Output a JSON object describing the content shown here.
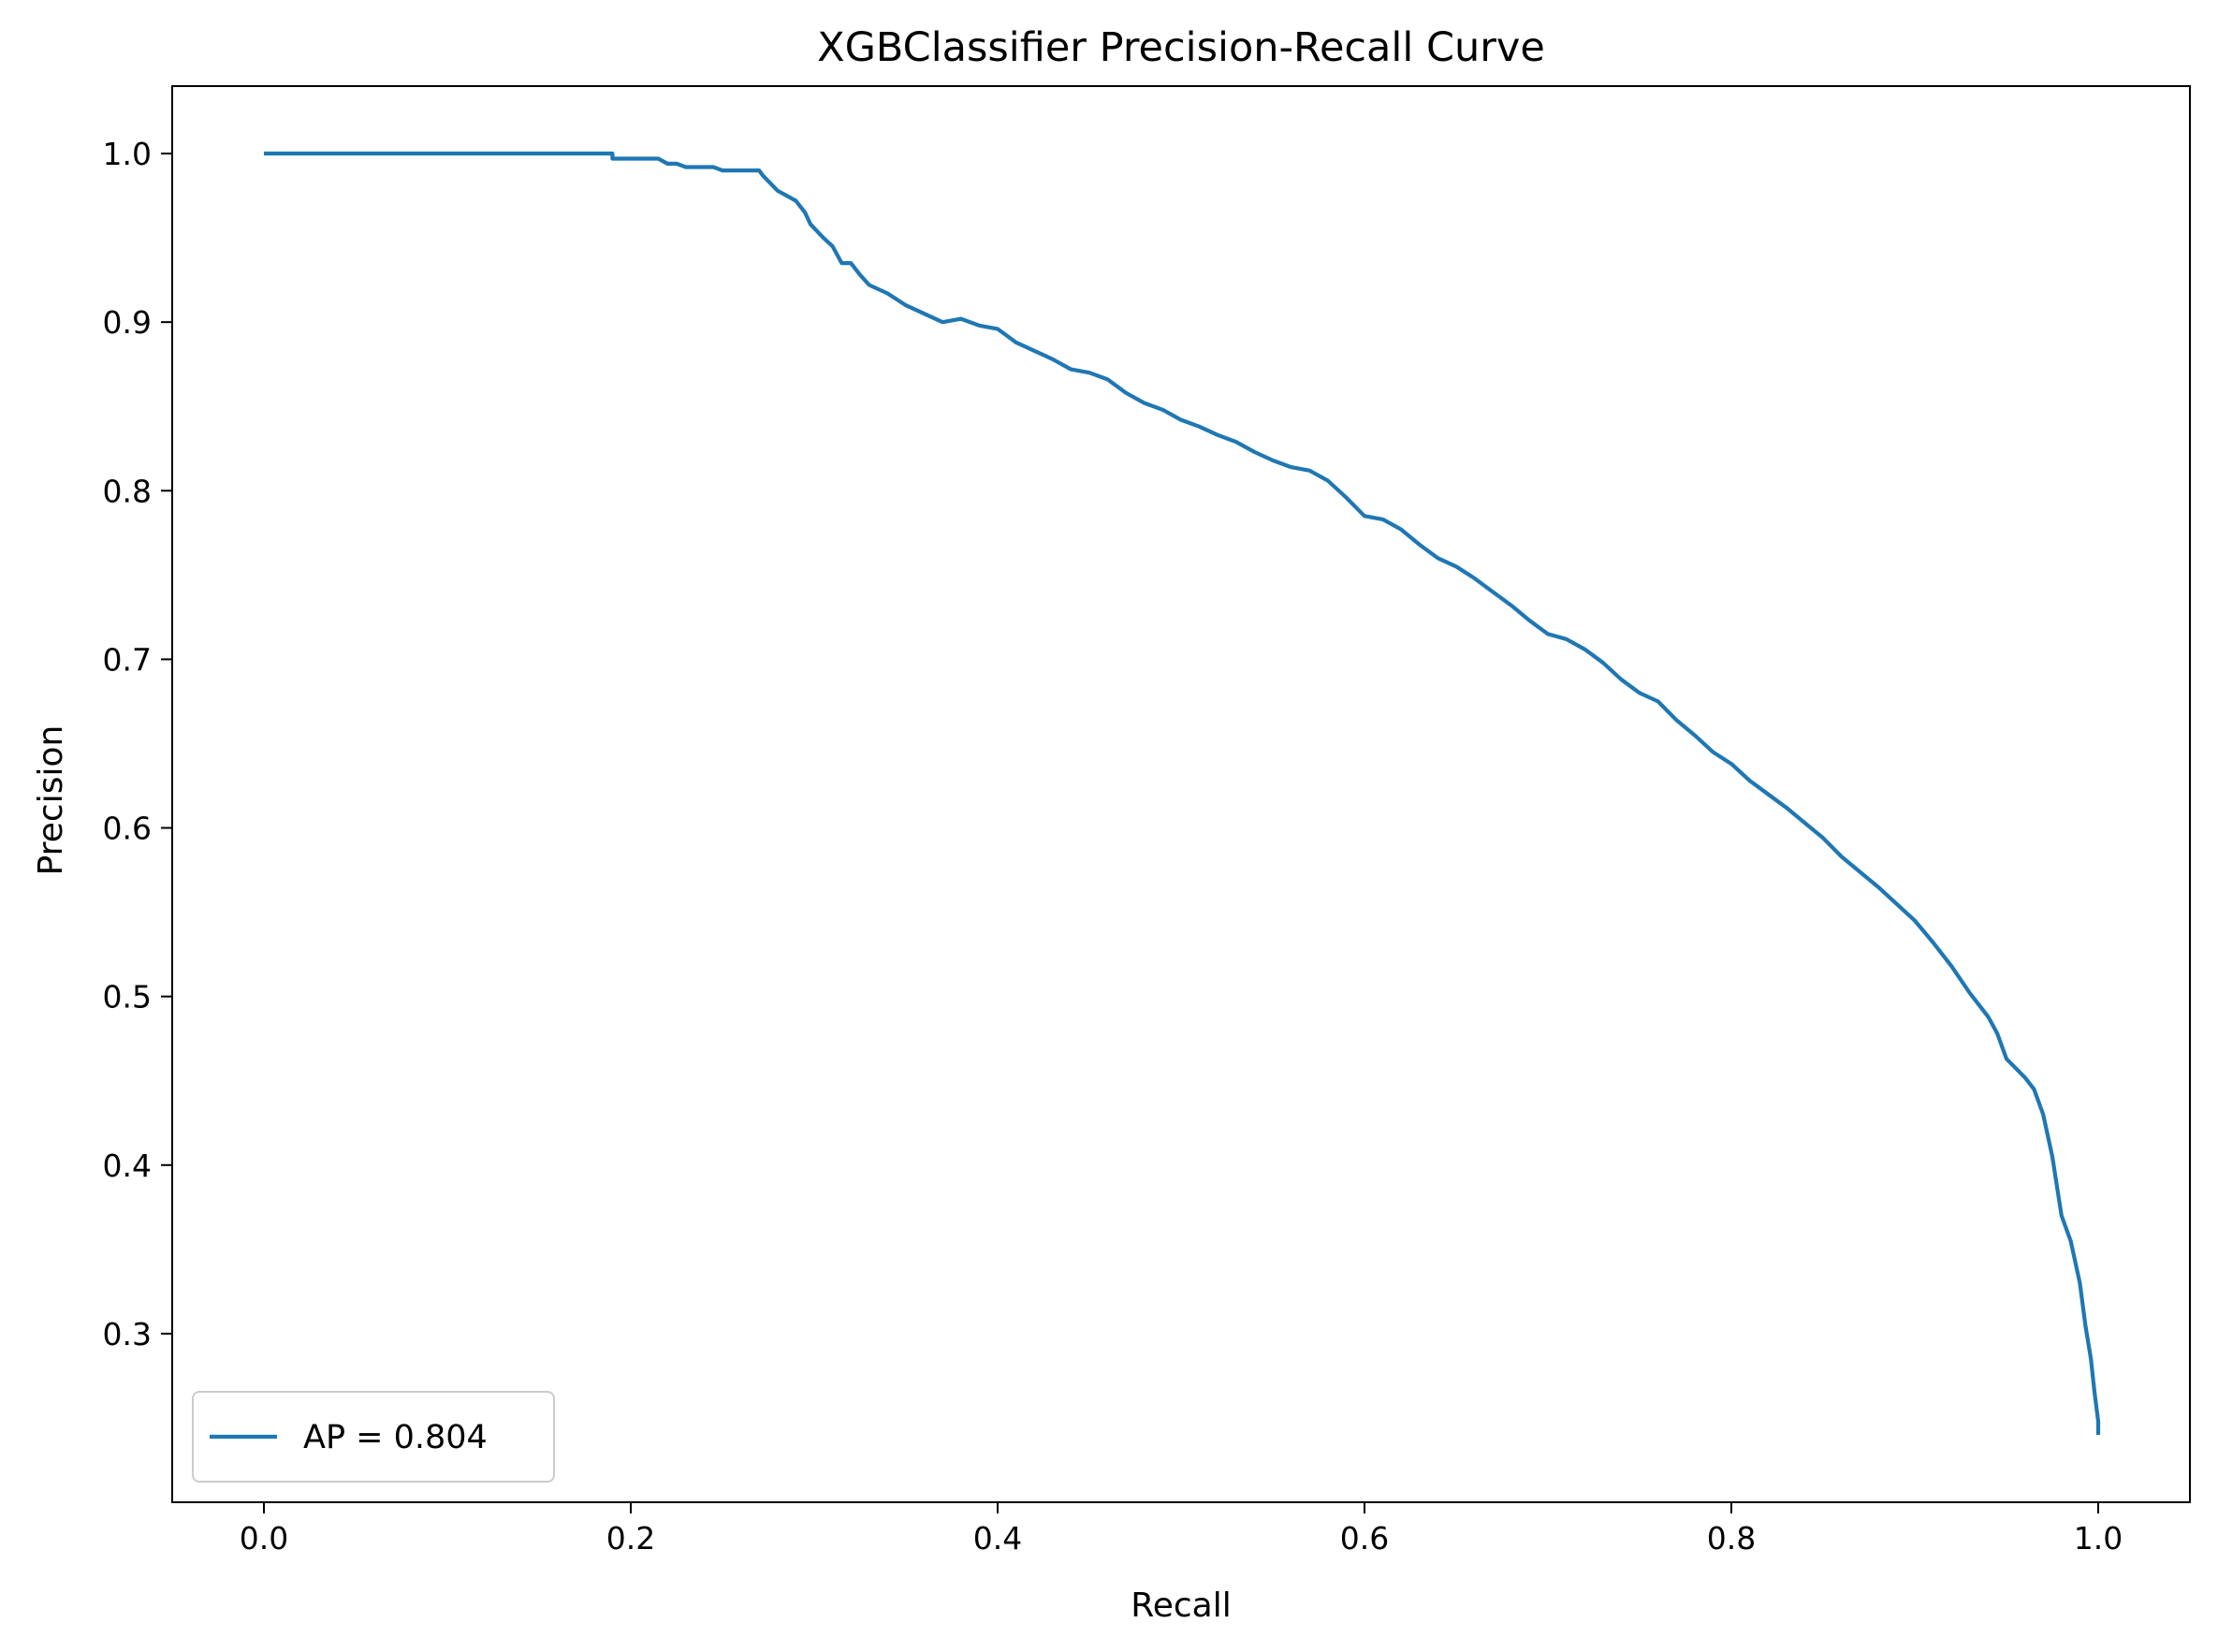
{
  "chart_data": {
    "type": "line",
    "title": "XGBClassifier Precision-Recall Curve",
    "xlabel": "Recall",
    "ylabel": "Precision",
    "xlim": [
      -0.05,
      1.05
    ],
    "ylim": [
      0.2,
      1.04
    ],
    "xticks": [
      0.0,
      0.2,
      0.4,
      0.6,
      0.8,
      1.0
    ],
    "xtick_labels": [
      "0.0",
      "0.2",
      "0.4",
      "0.6",
      "0.8",
      "1.0"
    ],
    "yticks": [
      0.3,
      0.4,
      0.5,
      0.6,
      0.7,
      0.8,
      0.9,
      1.0
    ],
    "ytick_labels": [
      "0.3",
      "0.4",
      "0.5",
      "0.6",
      "0.7",
      "0.8",
      "0.9",
      "1.0"
    ],
    "grid": false,
    "legend_position": "lower-left",
    "series": [
      {
        "name": "AP = 0.804",
        "color": "#1f77b4",
        "x": [
          0.0,
          0.19,
          0.19,
          0.215,
          0.22,
          0.225,
          0.23,
          0.245,
          0.25,
          0.27,
          0.272,
          0.28,
          0.29,
          0.295,
          0.298,
          0.305,
          0.31,
          0.315,
          0.32,
          0.325,
          0.33,
          0.34,
          0.35,
          0.36,
          0.37,
          0.38,
          0.39,
          0.4,
          0.41,
          0.42,
          0.43,
          0.44,
          0.45,
          0.46,
          0.47,
          0.48,
          0.49,
          0.5,
          0.51,
          0.52,
          0.53,
          0.54,
          0.55,
          0.56,
          0.57,
          0.58,
          0.59,
          0.6,
          0.61,
          0.62,
          0.63,
          0.64,
          0.65,
          0.66,
          0.67,
          0.68,
          0.69,
          0.7,
          0.71,
          0.72,
          0.73,
          0.74,
          0.75,
          0.76,
          0.77,
          0.78,
          0.79,
          0.8,
          0.81,
          0.82,
          0.83,
          0.84,
          0.85,
          0.86,
          0.87,
          0.88,
          0.89,
          0.9,
          0.91,
          0.92,
          0.93,
          0.94,
          0.945,
          0.95,
          0.96,
          0.965,
          0.97,
          0.975,
          0.98,
          0.985,
          0.99,
          0.993,
          0.996,
          0.998,
          1.0,
          1.0
        ],
        "y": [
          1.0,
          1.0,
          0.997,
          0.997,
          0.994,
          0.994,
          0.992,
          0.992,
          0.99,
          0.99,
          0.987,
          0.978,
          0.972,
          0.965,
          0.958,
          0.95,
          0.945,
          0.935,
          0.935,
          0.928,
          0.922,
          0.917,
          0.91,
          0.905,
          0.9,
          0.902,
          0.898,
          0.896,
          0.888,
          0.883,
          0.878,
          0.872,
          0.87,
          0.866,
          0.858,
          0.852,
          0.848,
          0.842,
          0.838,
          0.833,
          0.829,
          0.823,
          0.818,
          0.814,
          0.812,
          0.806,
          0.796,
          0.785,
          0.783,
          0.777,
          0.768,
          0.76,
          0.755,
          0.748,
          0.74,
          0.732,
          0.723,
          0.715,
          0.712,
          0.706,
          0.698,
          0.688,
          0.68,
          0.675,
          0.664,
          0.655,
          0.645,
          0.638,
          0.628,
          0.62,
          0.612,
          0.603,
          0.594,
          0.583,
          0.574,
          0.565,
          0.555,
          0.545,
          0.532,
          0.518,
          0.502,
          0.488,
          0.478,
          0.463,
          0.452,
          0.445,
          0.43,
          0.405,
          0.37,
          0.355,
          0.33,
          0.305,
          0.285,
          0.265,
          0.248,
          0.24
        ]
      }
    ]
  }
}
